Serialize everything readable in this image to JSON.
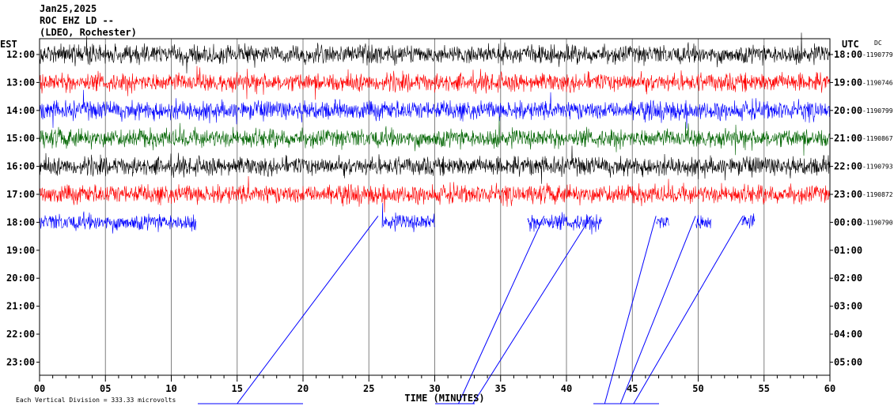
{
  "header": {
    "date": "Jan25,2025",
    "station": "ROC EHZ LD --",
    "location": "(LDEO, Rochester)"
  },
  "left_axis_label": "EST",
  "right_axis_label": "UTC",
  "dc_label": "DC",
  "footer": {
    "scale_text": "Each Vertical Division =  333.33 microvolts"
  },
  "chart_data": {
    "type": "line",
    "title": "Jan25,2025 ROC EHZ LD -- (LDEO, Rochester)",
    "xlabel": "TIME (MINUTES)",
    "xlim": [
      0,
      60
    ],
    "x_ticks": [
      "00",
      "05",
      "10",
      "15",
      "20",
      "25",
      "30",
      "35",
      "40",
      "45",
      "50",
      "55",
      "60"
    ],
    "x_minor_step": 1,
    "grid_vertical_every": 5,
    "rows": [
      {
        "est": "12:00",
        "utc": "18:00",
        "dc": "-1190779",
        "color": "#000000",
        "start": 0,
        "end": 60
      },
      {
        "est": "13:00",
        "utc": "19:00",
        "dc": "-1190746",
        "color": "#ff0000",
        "start": 0,
        "end": 60
      },
      {
        "est": "14:00",
        "utc": "20:00",
        "dc": "-1190799",
        "color": "#0000ff",
        "start": 0,
        "end": 60
      },
      {
        "est": "15:00",
        "utc": "21:00",
        "dc": "-1190867",
        "color": "#006400",
        "start": 0,
        "end": 60
      },
      {
        "est": "16:00",
        "utc": "22:00",
        "dc": "-1190793",
        "color": "#000000",
        "start": 0,
        "end": 60
      },
      {
        "est": "17:00",
        "utc": "23:00",
        "dc": "-1190872",
        "color": "#ff0000",
        "start": 0,
        "end": 60
      },
      {
        "est": "18:00",
        "utc": "00:00",
        "dc": "-1190790",
        "color": "#0000ff",
        "start": 0,
        "end": 54.3
      },
      {
        "est": "19:00",
        "utc": "01:00",
        "dc": "",
        "color": "#000000",
        "start": 0,
        "end": 0
      },
      {
        "est": "20:00",
        "utc": "02:00",
        "dc": "",
        "color": "#000000",
        "start": 0,
        "end": 0
      },
      {
        "est": "21:00",
        "utc": "03:00",
        "dc": "",
        "color": "#000000",
        "start": 0,
        "end": 0
      },
      {
        "est": "22:00",
        "utc": "04:00",
        "dc": "",
        "color": "#000000",
        "start": 0,
        "end": 0
      },
      {
        "est": "23:00",
        "utc": "05:00",
        "dc": "",
        "color": "#000000",
        "start": 0,
        "end": 0
      }
    ],
    "picks": [
      {
        "x_start": 15.0,
        "x_end": 25.7
      },
      {
        "x_start": 31.8,
        "x_end": 38.3
      },
      {
        "x_start": 32.9,
        "x_end": 41.9
      },
      {
        "x_start": 42.9,
        "x_end": 46.8
      },
      {
        "x_start": 44.1,
        "x_end": 49.8
      },
      {
        "x_start": 45.1,
        "x_end": 53.4
      }
    ],
    "pick_color": "#0000ff",
    "colors": [
      "#000000",
      "#ff0000",
      "#0000ff",
      "#006400"
    ]
  }
}
